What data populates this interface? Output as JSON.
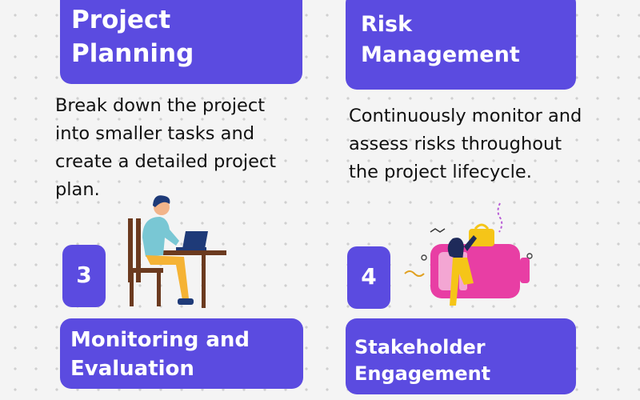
{
  "steps": [
    {
      "title_lines": [
        "Project",
        "Planning"
      ],
      "description_lines": [
        "Break down the project",
        "into smaller tasks and",
        "create a detailed project",
        "plan."
      ]
    },
    {
      "title_lines": [
        "Risk",
        "Management"
      ],
      "description_lines": [
        "Continuously monitor and",
        "assess risks throughout",
        "the project lifecycle."
      ]
    },
    {
      "number": "3",
      "title_lines": [
        "Monitoring and",
        "Evaluation"
      ],
      "illustration": "person-at-laptop-desk"
    },
    {
      "number": "4",
      "title_lines": [
        "Stakeholder",
        "Engagement"
      ],
      "illustration": "person-with-battery-illustration"
    }
  ],
  "colors": {
    "card": "#5b4be0",
    "background": "#f4f4f4",
    "battery": "#e83ea4",
    "accent_yellow": "#f5c518"
  }
}
